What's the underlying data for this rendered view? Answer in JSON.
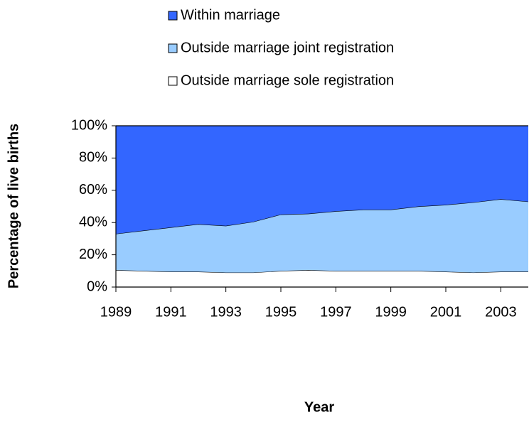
{
  "chart_data": {
    "type": "stacked-area",
    "x_label": "Year",
    "y_label": "Percentage of live births",
    "x": [
      1989,
      1990,
      1991,
      1992,
      1993,
      1994,
      1995,
      1996,
      1997,
      1998,
      1999,
      2000,
      2001,
      2002,
      2003,
      2004
    ],
    "xlim": [
      1989,
      2004
    ],
    "xticks": [
      1989,
      1991,
      1993,
      1995,
      1997,
      1999,
      2001,
      2003
    ],
    "ylim": [
      0,
      100
    ],
    "yticks": [
      {
        "value": 0,
        "label": "0%"
      },
      {
        "value": 20,
        "label": "20%"
      },
      {
        "value": 40,
        "label": "40%"
      },
      {
        "value": 60,
        "label": "60%"
      },
      {
        "value": 80,
        "label": "80%"
      },
      {
        "value": 100,
        "label": "100%"
      }
    ],
    "series": [
      {
        "name": "Within marriage",
        "color": "#3366ff",
        "values": [
          67,
          65,
          63,
          61,
          62,
          59.5,
          55,
          54.5,
          53,
          52,
          52,
          50,
          49,
          47.5,
          45.5,
          47
        ]
      },
      {
        "name": "Outside marriage joint registration",
        "color": "#99ccff",
        "values": [
          22.5,
          25,
          27.5,
          29.5,
          29,
          31.5,
          35,
          35,
          37,
          38,
          38,
          40,
          41.5,
          43.5,
          45,
          43.5
        ]
      },
      {
        "name": "Outside marriage sole registration",
        "color": "#ffffff",
        "values": [
          10.5,
          10,
          9.5,
          9.5,
          9,
          9,
          10,
          10.5,
          10,
          10,
          10,
          10,
          9.5,
          9,
          9.5,
          9.5
        ]
      }
    ]
  }
}
